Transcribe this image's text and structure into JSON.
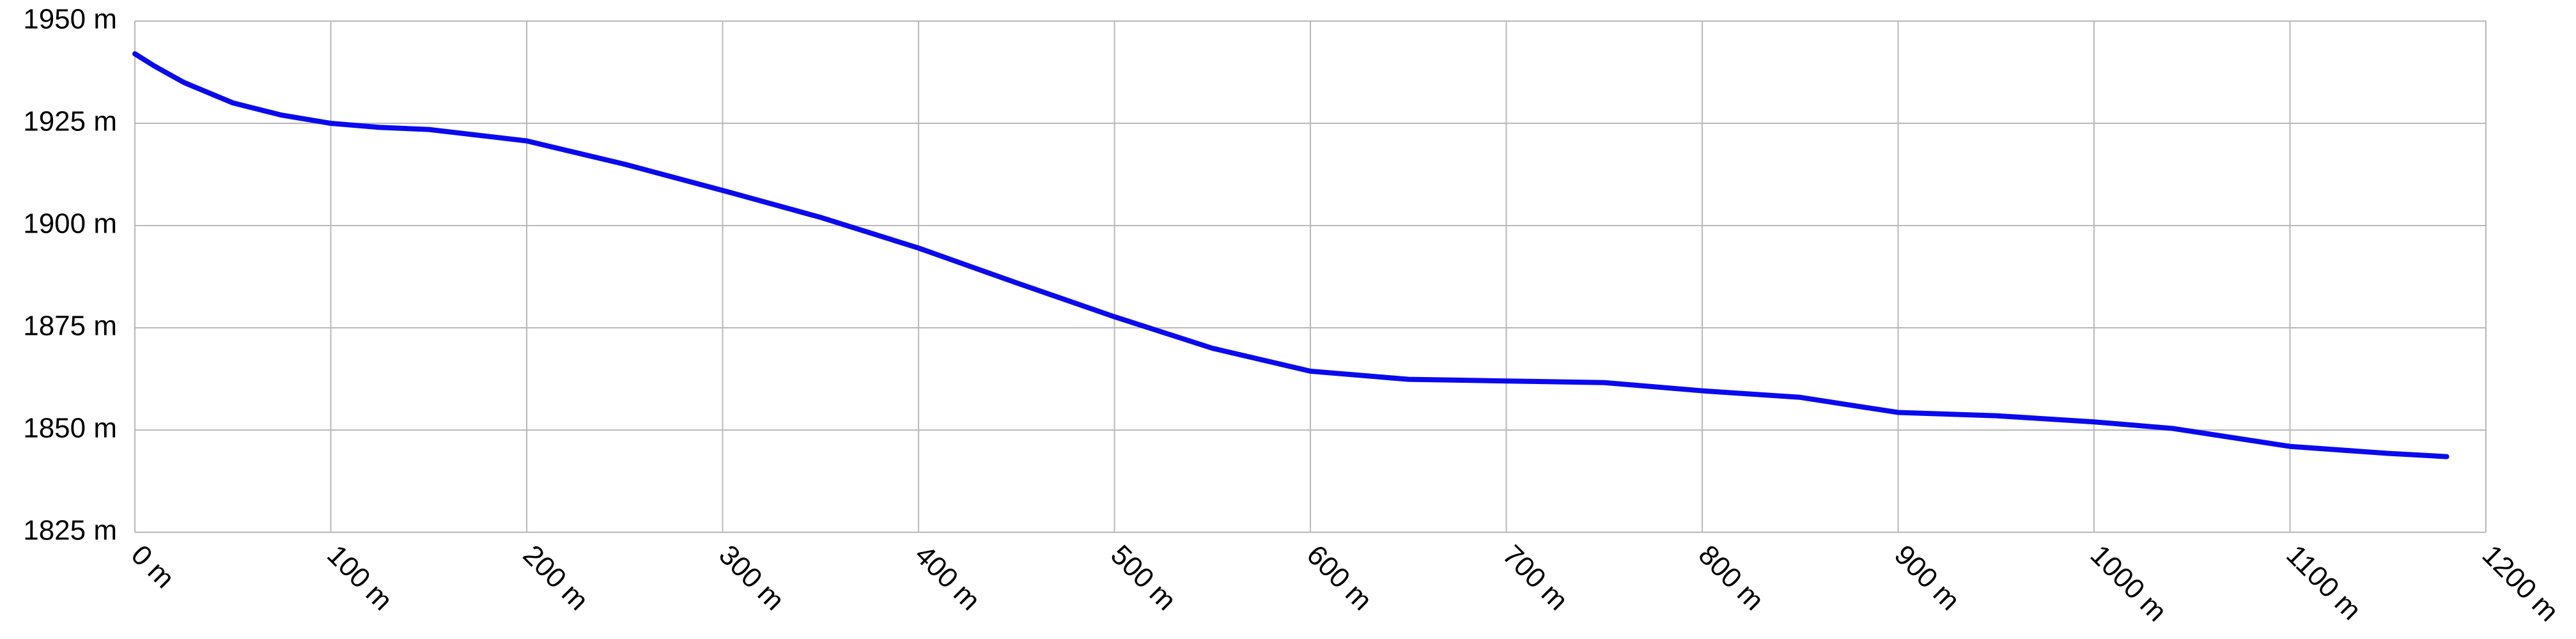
{
  "chart_data": {
    "type": "line",
    "x": [
      0,
      10,
      25,
      50,
      75,
      100,
      125,
      150,
      200,
      250,
      300,
      350,
      400,
      450,
      500,
      550,
      600,
      650,
      700,
      750,
      800,
      850,
      900,
      950,
      1000,
      1040,
      1100,
      1150,
      1180
    ],
    "series": [
      {
        "color": "#0a0aee",
        "values": [
          1942,
          1939,
          1935,
          1930,
          1927,
          1925,
          1924,
          1923.5,
          1920.7,
          1915,
          1908.6,
          1902,
          1894.5,
          1886,
          1877.7,
          1870,
          1864.4,
          1862.4,
          1862,
          1861.6,
          1859.6,
          1858,
          1854.3,
          1853.5,
          1852,
          1850.4,
          1846,
          1844.3,
          1843.5
        ]
      }
    ],
    "xlim": [
      0,
      1200
    ],
    "xticks": [
      {
        "value": 0,
        "label": "0 m"
      },
      {
        "value": 100,
        "label": "100 m"
      },
      {
        "value": 200,
        "label": "200 m"
      },
      {
        "value": 300,
        "label": "300 m"
      },
      {
        "value": 400,
        "label": "400 m"
      },
      {
        "value": 500,
        "label": "500 m"
      },
      {
        "value": 600,
        "label": "600 m"
      },
      {
        "value": 700,
        "label": "700 m"
      },
      {
        "value": 800,
        "label": "800 m"
      },
      {
        "value": 900,
        "label": "900 m"
      },
      {
        "value": 1000,
        "label": "1000 m"
      },
      {
        "value": 1100,
        "label": "1100 m"
      },
      {
        "value": 1200,
        "label": "1200 m"
      }
    ],
    "ylim": [
      1825,
      1950
    ],
    "yticks": [
      {
        "value": 1825,
        "label": "1825 m"
      },
      {
        "value": 1850,
        "label": "1850 m"
      },
      {
        "value": 1875,
        "label": "1875 m"
      },
      {
        "value": 1900,
        "label": "1900 m"
      },
      {
        "value": 1925,
        "label": "1925 m"
      },
      {
        "value": 1950,
        "label": "1950 m"
      }
    ],
    "grid": true
  }
}
